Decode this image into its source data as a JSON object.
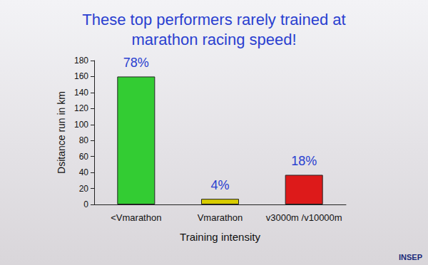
{
  "chart_data": {
    "type": "bar",
    "title": "These top performers rarely trained at\nmarathon racing speed!",
    "x_label": "Training intensity",
    "y_label": "Dsitance run in km",
    "categories": [
      "<Vmarathon",
      "Vmarathon",
      "v3000m /v10000m"
    ],
    "values": [
      160,
      7,
      37
    ],
    "colors": [
      "#33cc33",
      "#d8cc00",
      "#dd1a1a"
    ],
    "annotations": [
      "78%",
      "4%",
      "18%"
    ],
    "ylim": [
      0,
      180
    ],
    "yticks": [
      0,
      20,
      40,
      60,
      80,
      100,
      120,
      140,
      160,
      180
    ],
    "grid": false,
    "logo_text": "INSEP"
  }
}
